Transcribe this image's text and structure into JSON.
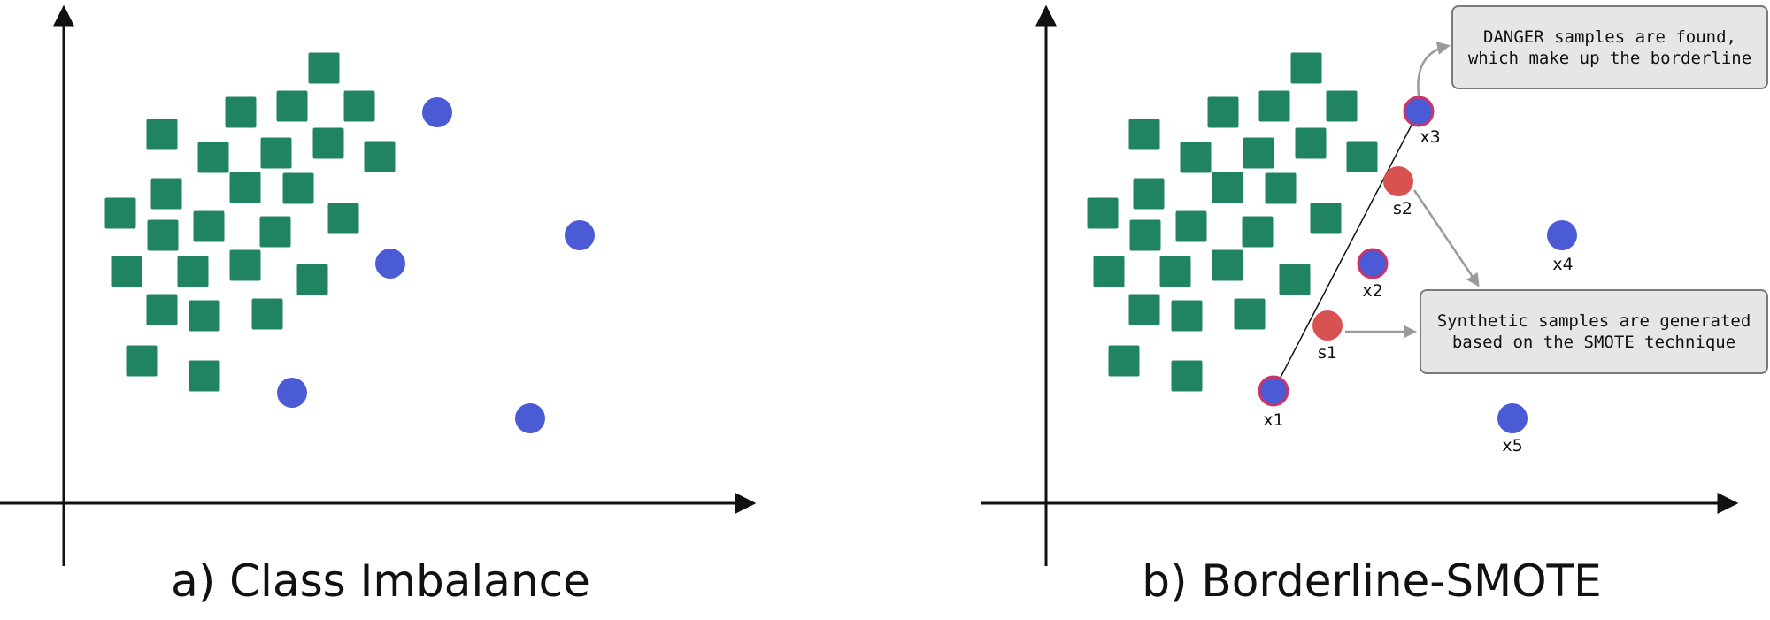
{
  "panels": {
    "a": {
      "caption": "a) Class Imbalance"
    },
    "b": {
      "caption": "b) Borderline-SMOTE"
    }
  },
  "point_labels": {
    "x1": "x1",
    "x2": "x2",
    "x3": "x3",
    "x4": "x4",
    "x5": "x5",
    "s1": "s1",
    "s2": "s2"
  },
  "callouts": {
    "danger": "DANGER samples are found, which make up the borderline",
    "synthetic": "Synthetic samples are generated based on the SMOTE technique"
  },
  "colors": {
    "majority": "#208462",
    "minority": "#4b5bd6",
    "danger_ring": "#cc3366",
    "synthetic": "#d95252",
    "axis": "#111111",
    "arrow": "#9a9a9a"
  }
}
